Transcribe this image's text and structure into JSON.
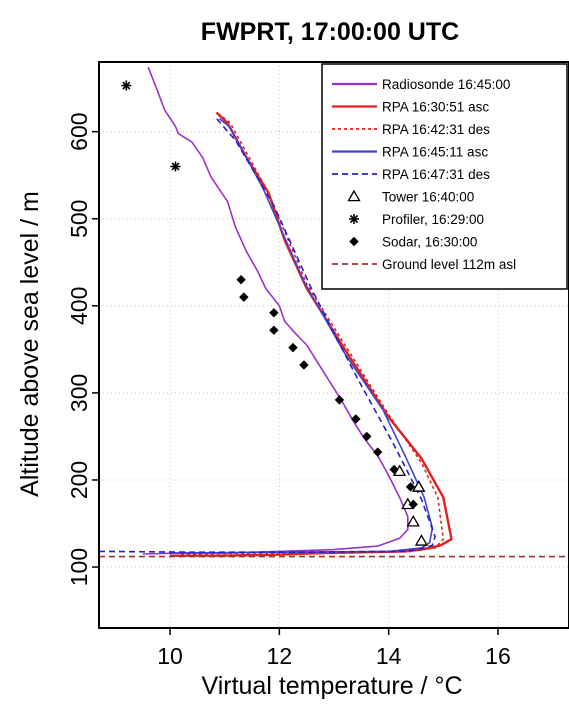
{
  "chart_data": {
    "type": "line",
    "title": "FWPRT, 17:00:00 UTC",
    "xlabel": "Virtual temperature / °C",
    "ylabel": "Altitude above sea level / m",
    "xlim": [
      8.7,
      17.3
    ],
    "ylim": [
      30,
      680
    ],
    "x_ticks": [
      10,
      12,
      14,
      16
    ],
    "y_ticks": [
      100,
      200,
      300,
      400,
      500,
      600
    ],
    "grid": true,
    "legend_position": "top-right",
    "series": [
      {
        "name": "Radiosonde 16:45:00",
        "kind": "line",
        "color": "#9933cc",
        "dash": "solid",
        "x": [
          9.6,
          9.75,
          9.9,
          10.1,
          10.15,
          10.4,
          10.6,
          10.75,
          11.05,
          11.2,
          11.4,
          11.6,
          11.75,
          12.0,
          12.1,
          12.3,
          12.5,
          12.7,
          12.95,
          13.15,
          13.35,
          13.55,
          13.8,
          14.0,
          14.2,
          14.35,
          14.35,
          14.2,
          13.8,
          13.0,
          12.0,
          11.0,
          10.2,
          9.5
        ],
        "y": [
          674,
          650,
          625,
          606,
          598,
          588,
          570,
          548,
          520,
          490,
          462,
          440,
          420,
          400,
          382,
          368,
          355,
          335,
          310,
          290,
          268,
          248,
          228,
          205,
          180,
          158,
          143,
          133,
          124,
          120,
          118,
          116,
          116,
          115
        ]
      },
      {
        "name": "RPA 16:30:51 asc",
        "kind": "line",
        "color": "#e02020",
        "dash": "solid",
        "x": [
          10.0,
          10.9,
          11.8,
          12.8,
          13.6,
          14.3,
          14.6,
          14.75,
          14.95,
          15.15,
          15.0,
          14.6,
          14.0,
          13.3,
          12.5,
          12.1,
          11.8,
          11.4,
          11.05,
          10.85
        ],
        "y": [
          113,
          113,
          114,
          116,
          117,
          118,
          120,
          122,
          125,
          132,
          180,
          225,
          272,
          340,
          420,
          475,
          530,
          570,
          610,
          622
        ]
      },
      {
        "name": "RPA 16:42:31 des",
        "kind": "line",
        "color": "#e02020",
        "dash": "dotted",
        "x": [
          10.2,
          11.5,
          13.0,
          14.4,
          14.85,
          15.0,
          14.9,
          14.6,
          14.0,
          13.3,
          12.5,
          11.8,
          11.1,
          10.9
        ],
        "y": [
          115,
          116,
          116,
          118,
          122,
          132,
          180,
          220,
          275,
          345,
          425,
          530,
          610,
          620
        ]
      },
      {
        "name": "RPA 16:45:11 asc",
        "kind": "line",
        "color": "#4444cc",
        "dash": "solid",
        "x": [
          10.0,
          12.0,
          14.0,
          14.6,
          14.75,
          14.8,
          14.65,
          14.3,
          13.9,
          13.2,
          12.45,
          11.7,
          11.1,
          10.9
        ],
        "y": [
          116,
          117,
          118,
          122,
          128,
          145,
          180,
          228,
          280,
          345,
          428,
          535,
          605,
          615
        ]
      },
      {
        "name": "RPA 16:47:31 des",
        "kind": "line",
        "color": "#2222cc",
        "dash": "dashed",
        "x": [
          8.7,
          10.5,
          12.5,
          14.2,
          14.55,
          14.8,
          14.85,
          14.6,
          14.1,
          13.4,
          12.6,
          11.9,
          11.2,
          10.85
        ],
        "y": [
          118,
          117,
          117,
          118,
          120,
          125,
          135,
          178,
          240,
          320,
          418,
          515,
          590,
          615
        ]
      },
      {
        "name": "Tower 16:40:00",
        "kind": "marker",
        "marker": "triangle",
        "color": "#000000",
        "x": [
          14.6,
          14.45,
          14.35,
          14.55,
          14.55,
          14.2
        ],
        "y": [
          130,
          152,
          172,
          192,
          192,
          210
        ]
      },
      {
        "name": "Profiler, 16:29:00",
        "kind": "marker",
        "marker": "asterisk",
        "color": "#000000",
        "x": [
          9.2,
          10.1
        ],
        "y": [
          653,
          560
        ]
      },
      {
        "name": "Sodar, 16:30:00",
        "kind": "marker",
        "marker": "diamond",
        "color": "#000000",
        "x": [
          11.3,
          11.35,
          11.9,
          11.9,
          12.25,
          12.45,
          13.1,
          13.4,
          13.6,
          13.8,
          14.1,
          14.4,
          14.45
        ],
        "y": [
          430,
          410,
          392,
          372,
          352,
          332,
          292,
          270,
          250,
          232,
          212,
          192,
          172
        ]
      },
      {
        "name": "Ground level 112m asl",
        "kind": "hline",
        "color": "#993333",
        "dash": "dashed",
        "y_value": 112
      }
    ]
  }
}
